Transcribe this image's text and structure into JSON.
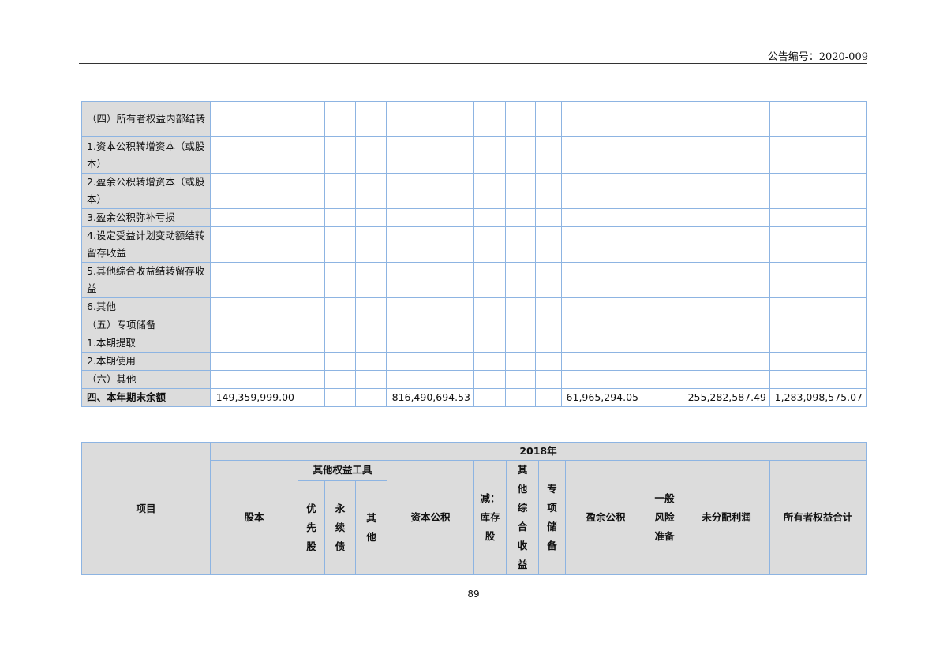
{
  "header": {
    "announcement_no": "公告编号：2020-009"
  },
  "table1": {
    "rows": [
      {
        "label": "（四）所有者权益内部结转",
        "values": [
          "",
          "",
          "",
          "",
          "",
          "",
          "",
          "",
          "",
          "",
          "",
          ""
        ],
        "h": 45
      },
      {
        "label": "1.资本公积转增资本（或股本）",
        "values": [
          "",
          "",
          "",
          "",
          "",
          "",
          "",
          "",
          "",
          "",
          "",
          ""
        ],
        "h": 46
      },
      {
        "label": "2.盈余公积转增资本（或股本）",
        "values": [
          "",
          "",
          "",
          "",
          "",
          "",
          "",
          "",
          "",
          "",
          "",
          ""
        ],
        "h": 45
      },
      {
        "label": "3.盈余公积弥补亏损",
        "values": [
          "",
          "",
          "",
          "",
          "",
          "",
          "",
          "",
          "",
          "",
          "",
          ""
        ],
        "h": 23
      },
      {
        "label": "4.设定受益计划变动额结转留存收益",
        "values": [
          "",
          "",
          "",
          "",
          "",
          "",
          "",
          "",
          "",
          "",
          "",
          ""
        ],
        "h": 45
      },
      {
        "label": "5.其他综合收益结转留存收益",
        "values": [
          "",
          "",
          "",
          "",
          "",
          "",
          "",
          "",
          "",
          "",
          "",
          ""
        ],
        "h": 45
      },
      {
        "label": "6.其他",
        "values": [
          "",
          "",
          "",
          "",
          "",
          "",
          "",
          "",
          "",
          "",
          "",
          ""
        ],
        "h": 23
      },
      {
        "label": "（五）专项储备",
        "values": [
          "",
          "",
          "",
          "",
          "",
          "",
          "",
          "",
          "",
          "",
          "",
          ""
        ],
        "h": 23
      },
      {
        "label": "1.本期提取",
        "values": [
          "",
          "",
          "",
          "",
          "",
          "",
          "",
          "",
          "",
          "",
          "",
          ""
        ],
        "h": 23
      },
      {
        "label": "2.本期使用",
        "values": [
          "",
          "",
          "",
          "",
          "",
          "",
          "",
          "",
          "",
          "",
          "",
          ""
        ],
        "h": 23
      },
      {
        "label": "（六）其他",
        "values": [
          "",
          "",
          "",
          "",
          "",
          "",
          "",
          "",
          "",
          "",
          "",
          ""
        ],
        "h": 23
      },
      {
        "label": "四、本年期末余额",
        "values": [
          "149,359,999.00",
          "",
          "",
          "",
          "816,490,694.53",
          "",
          "",
          "",
          "61,965,294.05",
          "",
          "255,282,587.49",
          "1,283,098,575.07"
        ],
        "h": 23,
        "total": true
      }
    ]
  },
  "table2": {
    "item": "项目",
    "year": "2018年",
    "share_capital": "股本",
    "other_equity_tools": "其他权益工具",
    "preferred": "优先股",
    "perpetual": "永续债",
    "other": "其他",
    "capital_reserve": "资本公积",
    "treasury": "减：库存股",
    "oci": "其他综合收益",
    "special_reserve": "专项储备",
    "surplus_reserve": "盈余公积",
    "general_risk": "一般风险准备",
    "undistributed": "未分配利润",
    "total_equity": "所有者权益合计"
  },
  "footer": {
    "page_number": "89"
  }
}
